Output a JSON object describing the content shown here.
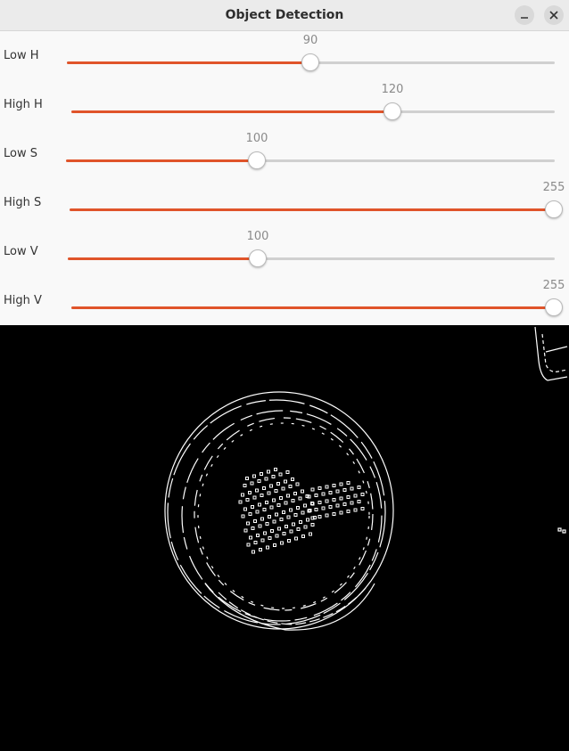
{
  "window": {
    "title": "Object Detection",
    "minimize_icon": "minimize-icon",
    "close_icon": "close-icon"
  },
  "sliders": [
    {
      "label": "Low H",
      "value": "90",
      "max": 180,
      "accent": "#e0542a"
    },
    {
      "label": "High H",
      "value": "120",
      "max": 180,
      "accent": "#e0542a"
    },
    {
      "label": "Low S",
      "value": "100",
      "max": 255,
      "accent": "#e0542a"
    },
    {
      "label": "High S",
      "value": "255",
      "max": 255,
      "accent": "#e0542a"
    },
    {
      "label": "Low V",
      "value": "100",
      "max": 255,
      "accent": "#e0542a"
    },
    {
      "label": "High V",
      "value": "255",
      "max": 255,
      "accent": "#e0542a"
    }
  ],
  "image_view": {
    "content": "edge-detection-output",
    "background": "#000000"
  }
}
